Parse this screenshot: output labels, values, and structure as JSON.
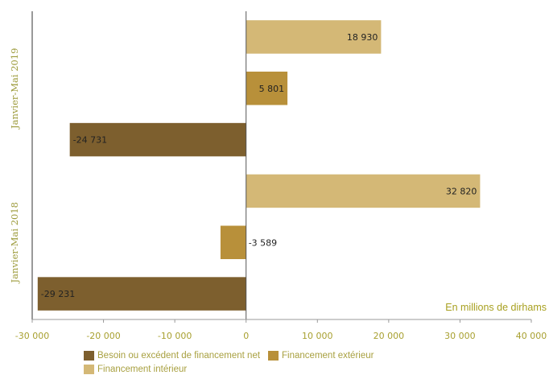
{
  "chart_data": {
    "type": "bar",
    "orientation": "horizontal",
    "categories": [
      "Janvier-Mai 2019",
      "Janvier-Mai 2018"
    ],
    "series": [
      {
        "name": "Financement intérieur",
        "color": "#d4b876",
        "values": [
          18930,
          32820
        ],
        "labels": [
          "18 930",
          "32 820"
        ]
      },
      {
        "name": "Financement extérieur",
        "color": "#b8903a",
        "values": [
          5801,
          -3589
        ],
        "labels": [
          "5 801",
          "-3 589"
        ]
      },
      {
        "name": "Besoin ou excédent de financement net",
        "color": "#7d5f2e",
        "values": [
          -24731,
          -29231
        ],
        "labels": [
          "-24 731",
          "-29 231"
        ]
      }
    ],
    "xlim": [
      -30000,
      40000
    ],
    "xticks": [
      -30000,
      -20000,
      -10000,
      0,
      10000,
      20000,
      30000,
      40000
    ],
    "xtick_labels": [
      "-30 000",
      "-20 000",
      "-10 000",
      "0",
      "10 000",
      "20 000",
      "30 000",
      "40 000"
    ],
    "unit_label": "En millions de dirhams",
    "legend": [
      {
        "name": "Besoin ou excédent de financement net",
        "color": "#7d5f2e"
      },
      {
        "name": "Financement extérieur",
        "color": "#b8903a"
      },
      {
        "name": "Financement intérieur",
        "color": "#d4b876"
      }
    ],
    "legend_position": "bottom",
    "grid": false
  }
}
